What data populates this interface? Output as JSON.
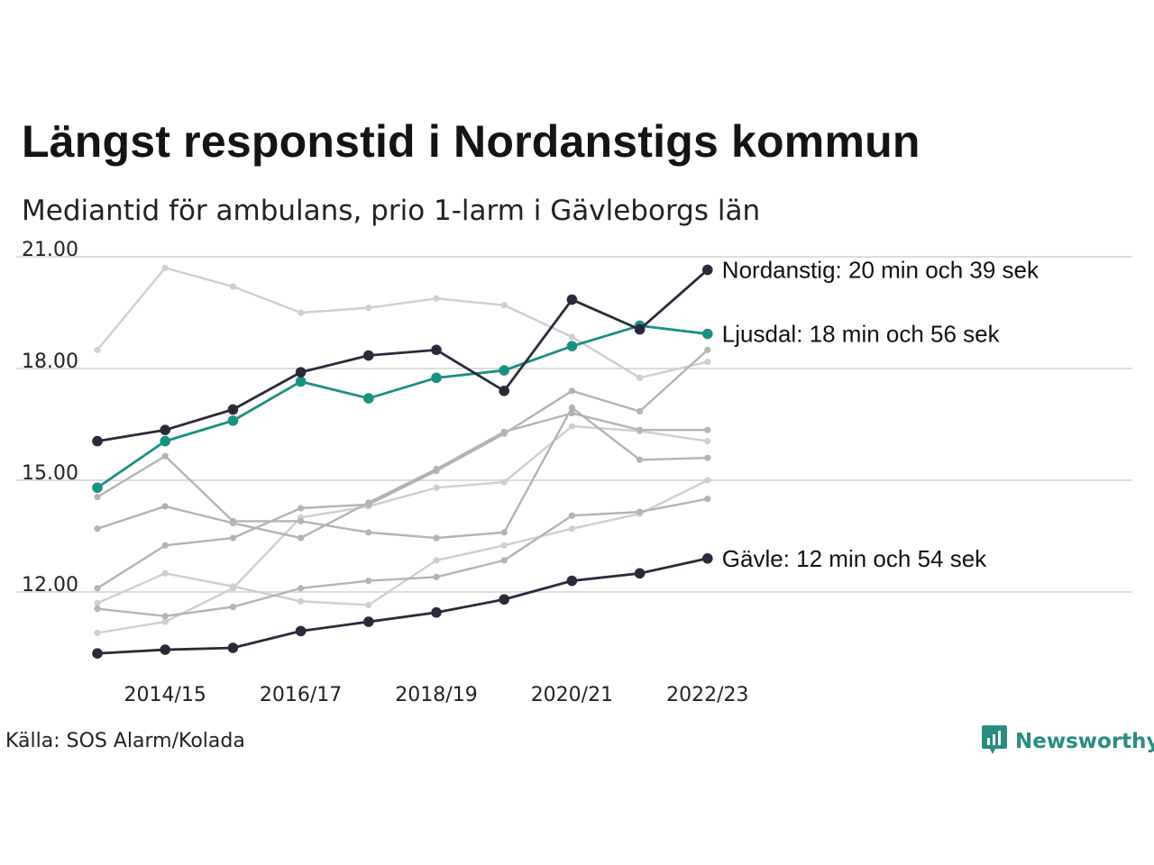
{
  "title": "Längst responstid i Nordanstigs kommun",
  "subtitle": "Mediantid för ambulans, prio 1-larm i Gävleborgs län",
  "source": "Källa: SOS Alarm/Kolada",
  "brand": {
    "name": "Newsworthy",
    "icon": "newsworthy-logo-icon",
    "color": "#2a8c80"
  },
  "colors": {
    "highlight_dark": "#2b2a3a",
    "highlight_teal": "#1a9082",
    "grey_mid": "#b3b3b3",
    "grey_light": "#cfcfcf",
    "grid": "#dddddd"
  },
  "chart_data": {
    "type": "line",
    "x": [
      "2013/14",
      "2014/15",
      "2015/16",
      "2016/17",
      "2017/18",
      "2018/19",
      "2019/20",
      "2020/21",
      "2021/22",
      "2022/23"
    ],
    "x_tick_labels": [
      "2014/15",
      "2016/17",
      "2018/19",
      "2020/21",
      "2022/23"
    ],
    "y_tick_labels": [
      "12.00",
      "15.00",
      "18.00",
      "21.00"
    ],
    "y_ticks": [
      12,
      15,
      18,
      21
    ],
    "ylim": [
      10.1,
      21.3
    ],
    "grid": true,
    "series": [
      {
        "name": "",
        "tone": "light",
        "values": [
          18.5,
          20.7,
          20.2,
          19.5,
          19.63,
          19.88,
          19.7,
          18.85,
          17.75,
          18.18
        ]
      },
      {
        "name": "",
        "tone": "light",
        "values": [
          10.9,
          11.2,
          12.1,
          14.0,
          14.3,
          14.8,
          14.95,
          16.45,
          16.32,
          16.05
        ]
      },
      {
        "name": "",
        "tone": "light",
        "values": [
          11.7,
          12.5,
          12.15,
          11.75,
          11.65,
          12.85,
          13.25,
          13.7,
          14.1,
          15.0
        ]
      },
      {
        "name": "",
        "tone": "mid",
        "values": [
          14.55,
          15.65,
          13.9,
          13.9,
          13.6,
          13.45,
          13.6,
          16.95,
          15.55,
          15.6
        ]
      },
      {
        "name": "",
        "tone": "mid",
        "values": [
          13.7,
          14.3,
          13.85,
          13.45,
          14.4,
          15.3,
          16.3,
          16.8,
          16.35,
          16.35
        ]
      },
      {
        "name": "",
        "tone": "mid",
        "values": [
          12.1,
          13.25,
          13.45,
          14.25,
          14.35,
          15.25,
          16.25,
          17.4,
          16.85,
          18.5
        ]
      },
      {
        "name": "",
        "tone": "mid",
        "values": [
          11.55,
          11.35,
          11.6,
          12.1,
          12.3,
          12.4,
          12.85,
          14.05,
          14.15,
          14.5
        ]
      },
      {
        "name": "Gävle",
        "tone": "dark",
        "label": "Gävle: 12 min och 54 sek",
        "values": [
          10.35,
          10.45,
          10.5,
          10.95,
          11.2,
          11.45,
          11.8,
          12.3,
          12.5,
          12.9
        ]
      },
      {
        "name": "Ljusdal",
        "tone": "teal",
        "label": "Ljusdal: 18 min och 56 sek",
        "values": [
          14.8,
          16.05,
          16.6,
          17.65,
          17.2,
          17.75,
          17.95,
          18.6,
          19.15,
          18.93
        ]
      },
      {
        "name": "Nordanstig",
        "tone": "dark",
        "label": "Nordanstig: 20 min och 39 sek",
        "values": [
          16.05,
          16.35,
          16.9,
          17.9,
          18.35,
          18.5,
          17.4,
          19.85,
          19.05,
          20.65
        ]
      }
    ]
  }
}
